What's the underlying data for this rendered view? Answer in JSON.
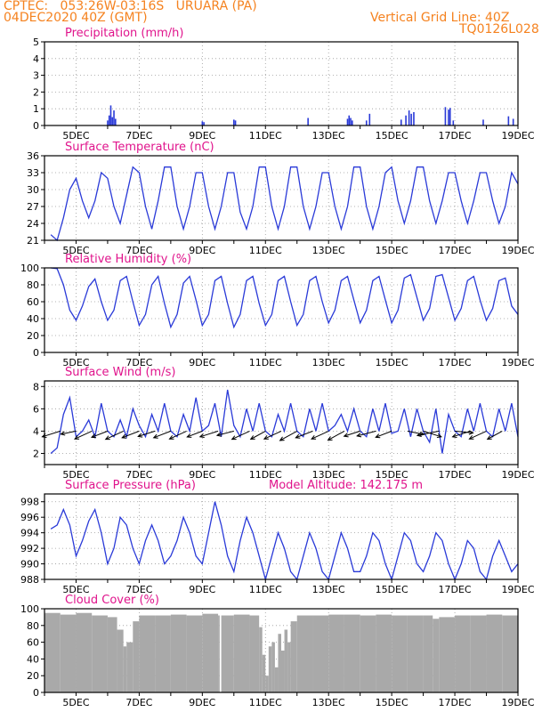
{
  "header": {
    "line1_left": "CPTEC:   053:26W-03:16S   URUARA (PA)",
    "line2_left": "04DEC2020 40Z (GMT)",
    "line1_right": "Vertical Grid Line: 40Z",
    "line2_right": "TQ0126L028"
  },
  "colors": {
    "header": "#f5821f",
    "title": "#e0148c",
    "line": "#2a3ad8",
    "cloud": "#a9a9a9",
    "grid": "#9a9a9a"
  },
  "date_labels": [
    "5DEC",
    "7DEC",
    "9DEC",
    "11DEC",
    "13DEC",
    "15DEC",
    "17DEC",
    "19DEC"
  ],
  "panels": {
    "precip": {
      "title": "Precipitation (mm/h)"
    },
    "temp": {
      "title": "Surface Temperature (nC)"
    },
    "rh": {
      "title": "Relative Humidity (%)"
    },
    "wind": {
      "title": "Surface Wind (m/s)"
    },
    "pres": {
      "title": "Surface Pressure (hPa)",
      "extra": "Model Altitude: 142.175 m"
    },
    "cloud": {
      "title": "Cloud Cover (%)"
    }
  },
  "chart_data": [
    {
      "type": "bar",
      "title": "Precipitation (mm/h)",
      "x_unit": "day of December 2020",
      "ylim": [
        0,
        5
      ],
      "yticks": [
        0,
        1,
        2,
        3,
        4,
        5
      ],
      "x": [
        6.0,
        6.05,
        6.1,
        6.15,
        6.2,
        6.25,
        9.0,
        9.05,
        10.0,
        10.05,
        12.35,
        13.6,
        13.65,
        13.7,
        13.75,
        14.2,
        14.3,
        15.3,
        15.45,
        15.55,
        15.62,
        15.7,
        16.7,
        16.8,
        16.85,
        16.95,
        17.9,
        18.7,
        18.85
      ],
      "values": [
        0.3,
        0.6,
        1.2,
        0.5,
        0.9,
        0.4,
        0.25,
        0.2,
        0.35,
        0.3,
        0.45,
        0.4,
        0.6,
        0.45,
        0.3,
        0.3,
        0.7,
        0.35,
        0.6,
        0.9,
        0.7,
        0.8,
        1.1,
        0.95,
        1.05,
        0.3,
        0.35,
        0.55,
        0.4
      ]
    },
    {
      "type": "line",
      "title": "Surface Temperature (nC)",
      "x_unit": "day of December 2020",
      "ylim": [
        21,
        36
      ],
      "yticks": [
        21,
        24,
        27,
        30,
        33,
        36
      ],
      "series": [
        {
          "x": [
            4.2,
            4.4,
            4.6,
            4.8,
            5.0,
            5.2,
            5.4,
            5.6,
            5.8,
            6.0,
            6.2,
            6.4,
            6.6,
            6.8,
            7.0,
            7.2,
            7.4,
            7.6,
            7.8,
            8.0,
            8.2,
            8.4,
            8.6,
            8.8,
            9.0,
            9.2,
            9.4,
            9.6,
            9.8,
            10.0,
            10.2,
            10.4,
            10.6,
            10.8,
            11.0,
            11.2,
            11.4,
            11.6,
            11.8,
            12.0,
            12.2,
            12.4,
            12.6,
            12.8,
            13.0,
            13.2,
            13.4,
            13.6,
            13.8,
            14.0,
            14.2,
            14.4,
            14.6,
            14.8,
            15.0,
            15.2,
            15.4,
            15.6,
            15.8,
            16.0,
            16.2,
            16.4,
            16.6,
            16.8,
            17.0,
            17.2,
            17.4,
            17.6,
            17.8,
            18.0,
            18.2,
            18.4,
            18.6,
            18.8,
            19.0
          ],
          "values": [
            22,
            21,
            25,
            30,
            32,
            28,
            25,
            28,
            33,
            32,
            27,
            24,
            29,
            34,
            33,
            27,
            23,
            28,
            34,
            34,
            27,
            23,
            27,
            33,
            33,
            27,
            23,
            27,
            33,
            33,
            26,
            23,
            27,
            34,
            34,
            27,
            23,
            27,
            34,
            34,
            27,
            23,
            27,
            33,
            33,
            27,
            23,
            27,
            34,
            34,
            27,
            23,
            27,
            33,
            34,
            28,
            24,
            28,
            34,
            34,
            28,
            24,
            28,
            33,
            33,
            28,
            24,
            28,
            33,
            33,
            28,
            24,
            27,
            33,
            31
          ]
        }
      ]
    },
    {
      "type": "line",
      "title": "Relative Humidity (%)",
      "x_unit": "day of December 2020",
      "ylim": [
        0,
        100
      ],
      "yticks": [
        0,
        20,
        40,
        60,
        80,
        100
      ],
      "series": [
        {
          "x": [
            4.2,
            4.4,
            4.6,
            4.8,
            5.0,
            5.2,
            5.4,
            5.6,
            5.8,
            6.0,
            6.2,
            6.4,
            6.6,
            6.8,
            7.0,
            7.2,
            7.4,
            7.6,
            7.8,
            8.0,
            8.2,
            8.4,
            8.6,
            8.8,
            9.0,
            9.2,
            9.4,
            9.6,
            9.8,
            10.0,
            10.2,
            10.4,
            10.6,
            10.8,
            11.0,
            11.2,
            11.4,
            11.6,
            11.8,
            12.0,
            12.2,
            12.4,
            12.6,
            12.8,
            13.0,
            13.2,
            13.4,
            13.6,
            13.8,
            14.0,
            14.2,
            14.4,
            14.6,
            14.8,
            15.0,
            15.2,
            15.4,
            15.6,
            15.8,
            16.0,
            16.2,
            16.4,
            16.6,
            16.8,
            17.0,
            17.2,
            17.4,
            17.6,
            17.8,
            18.0,
            18.2,
            18.4,
            18.6,
            18.8,
            19.0
          ],
          "values": [
            100,
            99,
            80,
            50,
            38,
            55,
            78,
            87,
            60,
            38,
            50,
            85,
            90,
            60,
            32,
            45,
            80,
            90,
            58,
            30,
            45,
            82,
            90,
            62,
            32,
            45,
            85,
            90,
            58,
            30,
            45,
            85,
            90,
            58,
            32,
            45,
            85,
            90,
            60,
            32,
            45,
            85,
            90,
            60,
            35,
            50,
            85,
            90,
            62,
            35,
            50,
            85,
            90,
            62,
            35,
            50,
            88,
            92,
            65,
            38,
            52,
            90,
            92,
            65,
            38,
            52,
            85,
            90,
            62,
            38,
            52,
            85,
            88,
            55,
            45
          ]
        }
      ]
    },
    {
      "type": "line",
      "title": "Surface Wind (m/s)",
      "x_unit": "day of December 2020",
      "ylim": [
        1,
        8.5
      ],
      "yticks": [
        2,
        4,
        6,
        8
      ],
      "series": [
        {
          "x": [
            4.2,
            4.4,
            4.6,
            4.8,
            5.0,
            5.2,
            5.4,
            5.6,
            5.8,
            6.0,
            6.2,
            6.4,
            6.6,
            6.8,
            7.0,
            7.2,
            7.4,
            7.6,
            7.8,
            8.0,
            8.2,
            8.4,
            8.6,
            8.8,
            9.0,
            9.2,
            9.4,
            9.6,
            9.8,
            10.0,
            10.2,
            10.4,
            10.6,
            10.8,
            11.0,
            11.2,
            11.4,
            11.6,
            11.8,
            12.0,
            12.2,
            12.4,
            12.6,
            12.8,
            13.0,
            13.2,
            13.4,
            13.6,
            13.8,
            14.0,
            14.2,
            14.4,
            14.6,
            14.8,
            15.0,
            15.2,
            15.4,
            15.6,
            15.8,
            16.0,
            16.2,
            16.4,
            16.6,
            16.8,
            17.0,
            17.2,
            17.4,
            17.6,
            17.8,
            18.0,
            18.2,
            18.4,
            18.6,
            18.8,
            19.0
          ],
          "values": [
            2,
            2.5,
            5.5,
            7,
            3.5,
            4,
            5,
            3.5,
            6.5,
            4,
            3.5,
            5,
            3.5,
            6,
            4.5,
            3.5,
            5.5,
            4,
            6.5,
            4,
            3.5,
            5.5,
            4,
            7,
            4,
            4.5,
            6.5,
            3.5,
            7.7,
            4.5,
            3.5,
            6,
            4,
            6.5,
            4,
            3.5,
            5.5,
            4,
            6.5,
            4,
            3.5,
            6,
            4,
            6.5,
            4,
            4.5,
            5.5,
            4,
            6,
            4,
            3.5,
            6,
            4,
            6.5,
            3.8,
            4,
            6,
            3.5,
            6,
            4,
            3,
            6,
            2,
            5.5,
            4,
            3.5,
            6,
            4,
            6.5,
            4,
            3.5,
            6,
            4,
            6.5,
            3.5
          ]
        }
      ],
      "arrows": {
        "x": [
          4.5,
          5.0,
          5.5,
          6.0,
          6.5,
          7.0,
          7.5,
          8.0,
          8.5,
          9.0,
          9.5,
          10.0,
          10.5,
          11.0,
          11.5,
          12.0,
          12.5,
          13.0,
          13.5,
          14.0,
          14.5,
          15.0,
          15.5,
          16.0,
          16.5,
          17.0,
          17.5,
          18.0,
          18.5
        ],
        "speed": [
          4.5,
          3.5,
          4.8,
          4.2,
          5.0,
          4.5,
          4.2,
          4.5,
          4.8,
          4.0,
          4.5,
          4.0,
          5.0,
          4.5,
          4.8,
          5.2,
          4.5,
          4.8,
          5.0,
          4.0,
          4.5,
          4.2,
          3.8,
          4.5,
          5.0,
          4.0,
          4.5,
          4.8,
          4.5
        ],
        "dir_deg": [
          60,
          70,
          50,
          55,
          50,
          55,
          60,
          55,
          50,
          55,
          60,
          65,
          50,
          45,
          50,
          45,
          55,
          50,
          45,
          60,
          65,
          55,
          290,
          300,
          70,
          280,
          60,
          50,
          45
        ]
      }
    },
    {
      "type": "line",
      "title": "Surface Pressure (hPa)",
      "x_unit": "day of December 2020",
      "ylim": [
        988,
        999
      ],
      "yticks": [
        988,
        990,
        992,
        994,
        996,
        998
      ],
      "series": [
        {
          "x": [
            4.2,
            4.4,
            4.6,
            4.8,
            5.0,
            5.2,
            5.4,
            5.6,
            5.8,
            6.0,
            6.2,
            6.4,
            6.6,
            6.8,
            7.0,
            7.2,
            7.4,
            7.6,
            7.8,
            8.0,
            8.2,
            8.4,
            8.6,
            8.8,
            9.0,
            9.2,
            9.4,
            9.6,
            9.8,
            10.0,
            10.2,
            10.4,
            10.6,
            10.8,
            11.0,
            11.2,
            11.4,
            11.6,
            11.8,
            12.0,
            12.2,
            12.4,
            12.6,
            12.8,
            13.0,
            13.2,
            13.4,
            13.6,
            13.8,
            14.0,
            14.2,
            14.4,
            14.6,
            14.8,
            15.0,
            15.2,
            15.4,
            15.6,
            15.8,
            16.0,
            16.2,
            16.4,
            16.6,
            16.8,
            17.0,
            17.2,
            17.4,
            17.6,
            17.8,
            18.0,
            18.2,
            18.4,
            18.6,
            18.8,
            19.0
          ],
          "values": [
            994.5,
            995,
            997,
            995,
            991,
            993,
            995.5,
            997,
            994,
            990,
            992,
            996,
            995,
            992,
            990,
            993,
            995,
            993,
            990,
            991,
            993,
            996,
            994,
            991,
            990,
            994,
            998,
            995,
            991,
            989,
            993,
            996,
            994,
            991,
            988,
            991,
            994,
            992,
            989,
            988,
            991,
            994,
            992,
            989,
            988,
            991,
            994,
            992,
            989,
            989,
            991,
            994,
            993,
            990,
            988,
            991,
            994,
            993,
            990,
            989,
            991,
            994,
            993,
            990,
            988,
            990,
            993,
            992,
            989,
            988,
            991,
            993,
            991,
            989,
            990
          ]
        }
      ]
    },
    {
      "type": "bar",
      "title": "Cloud Cover (%)",
      "x_unit": "day of December 2020",
      "ylim": [
        0,
        100
      ],
      "yticks": [
        0,
        20,
        40,
        60,
        80,
        100
      ],
      "x": [
        4.0,
        4.5,
        5.0,
        5.5,
        6.0,
        6.3,
        6.5,
        6.6,
        6.8,
        7.0,
        7.5,
        8.0,
        8.5,
        9.0,
        9.5,
        9.55,
        9.6,
        10.0,
        10.5,
        10.8,
        10.9,
        11.0,
        11.1,
        11.2,
        11.3,
        11.4,
        11.5,
        11.6,
        11.7,
        11.8,
        12.0,
        12.5,
        13.0,
        13.5,
        14.0,
        14.5,
        15.0,
        15.5,
        16.0,
        16.3,
        16.5,
        17.0,
        17.5,
        18.0,
        18.5,
        19.0
      ],
      "values": [
        95,
        93,
        95,
        92,
        90,
        75,
        55,
        60,
        85,
        92,
        92,
        93,
        92,
        94,
        92,
        0,
        92,
        93,
        92,
        78,
        45,
        20,
        55,
        60,
        30,
        70,
        50,
        75,
        60,
        85,
        92,
        92,
        93,
        93,
        92,
        93,
        92,
        92,
        92,
        88,
        90,
        92,
        92,
        93,
        92,
        90
      ]
    }
  ]
}
